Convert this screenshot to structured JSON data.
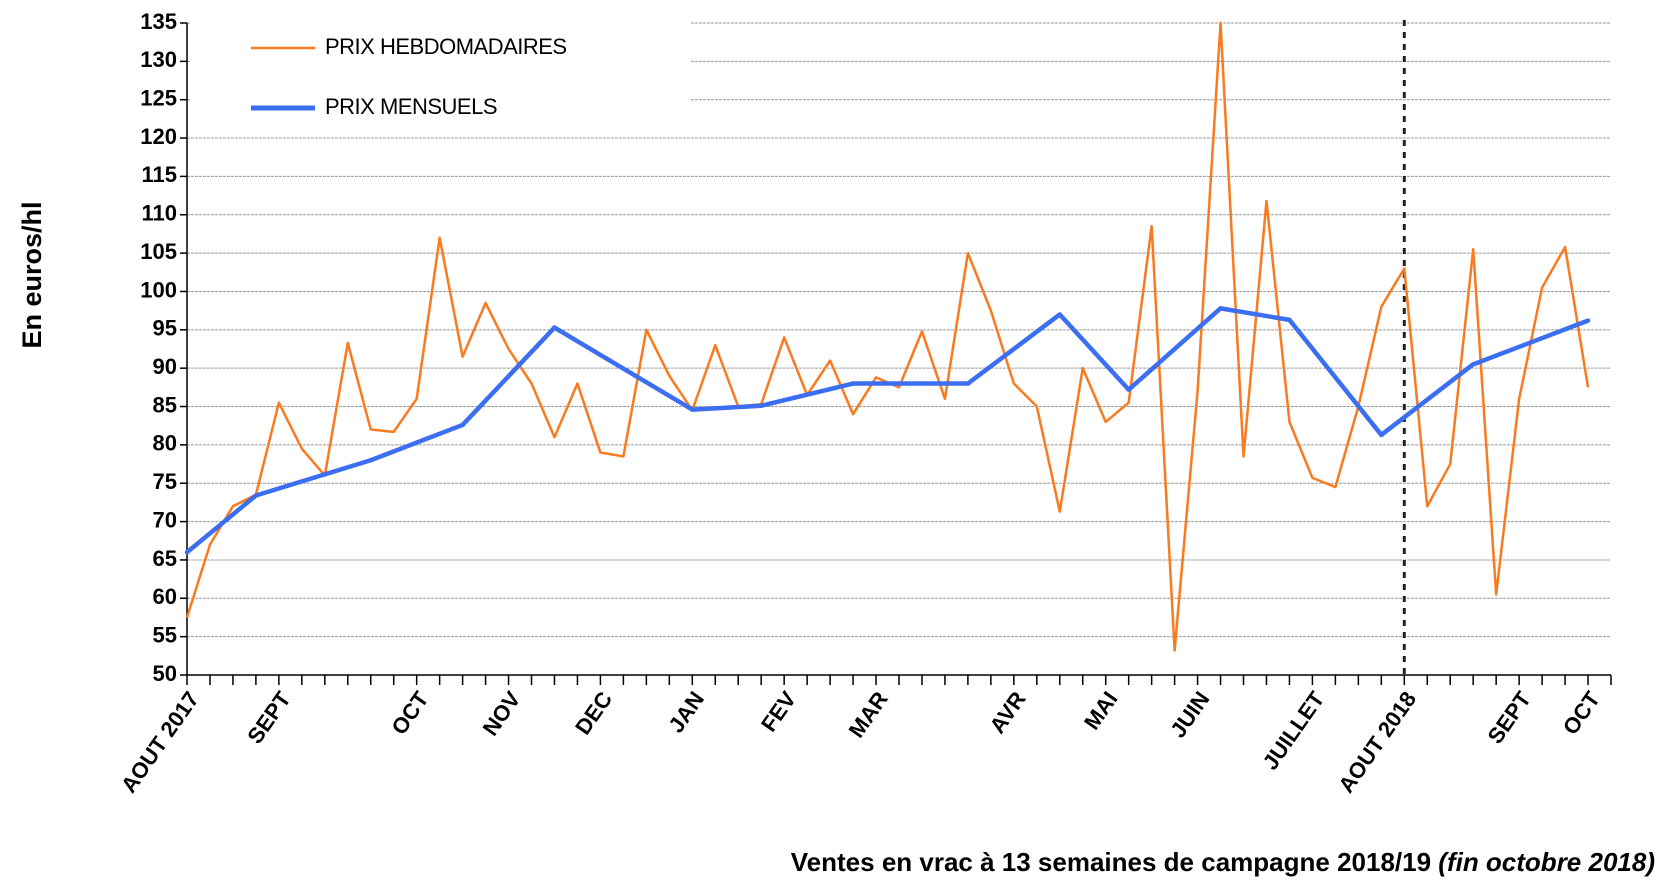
{
  "chart_data": {
    "type": "line",
    "ylabel": "En euros/hl",
    "xlabel": "Ventes en vrac à 13 semaines de campagne 2018/19 ",
    "xlabel_note": "(fin octobre 2018)",
    "categories": [
      "AOUT 2017",
      null,
      null,
      null,
      "SEPT",
      null,
      null,
      null,
      null,
      null,
      "OCT",
      null,
      null,
      null,
      "NOV",
      null,
      null,
      null,
      "DEC",
      null,
      null,
      null,
      "JAN",
      null,
      null,
      null,
      "FEV",
      null,
      null,
      null,
      "MAR",
      null,
      null,
      null,
      null,
      null,
      "AVR",
      null,
      null,
      null,
      "MAI",
      null,
      null,
      null,
      "JUIN",
      null,
      null,
      null,
      null,
      "JUILLET",
      null,
      null,
      null,
      "AOUT 2018",
      null,
      null,
      null,
      null,
      "SEPT",
      null,
      null,
      "OCT"
    ],
    "series": [
      {
        "name": "PRIX HEBDOMADAIRES",
        "color": "#f97a1f",
        "values": [
          57.5,
          67,
          72,
          73.5,
          85.5,
          79.5,
          76,
          93.3,
          82,
          81.7,
          86,
          107,
          91.5,
          98.5,
          92.5,
          88,
          81,
          88,
          79,
          78.5,
          95,
          89,
          84.5,
          93,
          85,
          85.3,
          94,
          86.5,
          91,
          84,
          88.8,
          87.5,
          94.8,
          86,
          105,
          97.5,
          88,
          85,
          71.3,
          90,
          83,
          85.5,
          108.5,
          53.2,
          87,
          135,
          78.5,
          111.8,
          83,
          75.7,
          74.5,
          85,
          98,
          103,
          72,
          77.5,
          105.5,
          60.5,
          86,
          100.5,
          105.8,
          87.5
        ]
      },
      {
        "name": "PRIX MENSUELS",
        "color": "#3b6ef0",
        "values": [
          66,
          null,
          null,
          73.4,
          null,
          null,
          null,
          null,
          78,
          null,
          null,
          null,
          82.6,
          null,
          null,
          null,
          95.3,
          null,
          null,
          null,
          null,
          null,
          84.6,
          null,
          null,
          85.1,
          null,
          null,
          null,
          88,
          null,
          null,
          null,
          null,
          88,
          null,
          null,
          null,
          97,
          null,
          null,
          87.2,
          null,
          null,
          null,
          97.8,
          null,
          null,
          96.3,
          null,
          null,
          null,
          81.3,
          null,
          null,
          null,
          90.5,
          null,
          null,
          null,
          null,
          96.2
        ]
      }
    ],
    "ylim": [
      50,
      135
    ],
    "yticks": [
      50,
      55,
      60,
      65,
      70,
      75,
      80,
      85,
      90,
      95,
      100,
      105,
      110,
      115,
      120,
      125,
      130,
      135
    ],
    "grid": true
  }
}
